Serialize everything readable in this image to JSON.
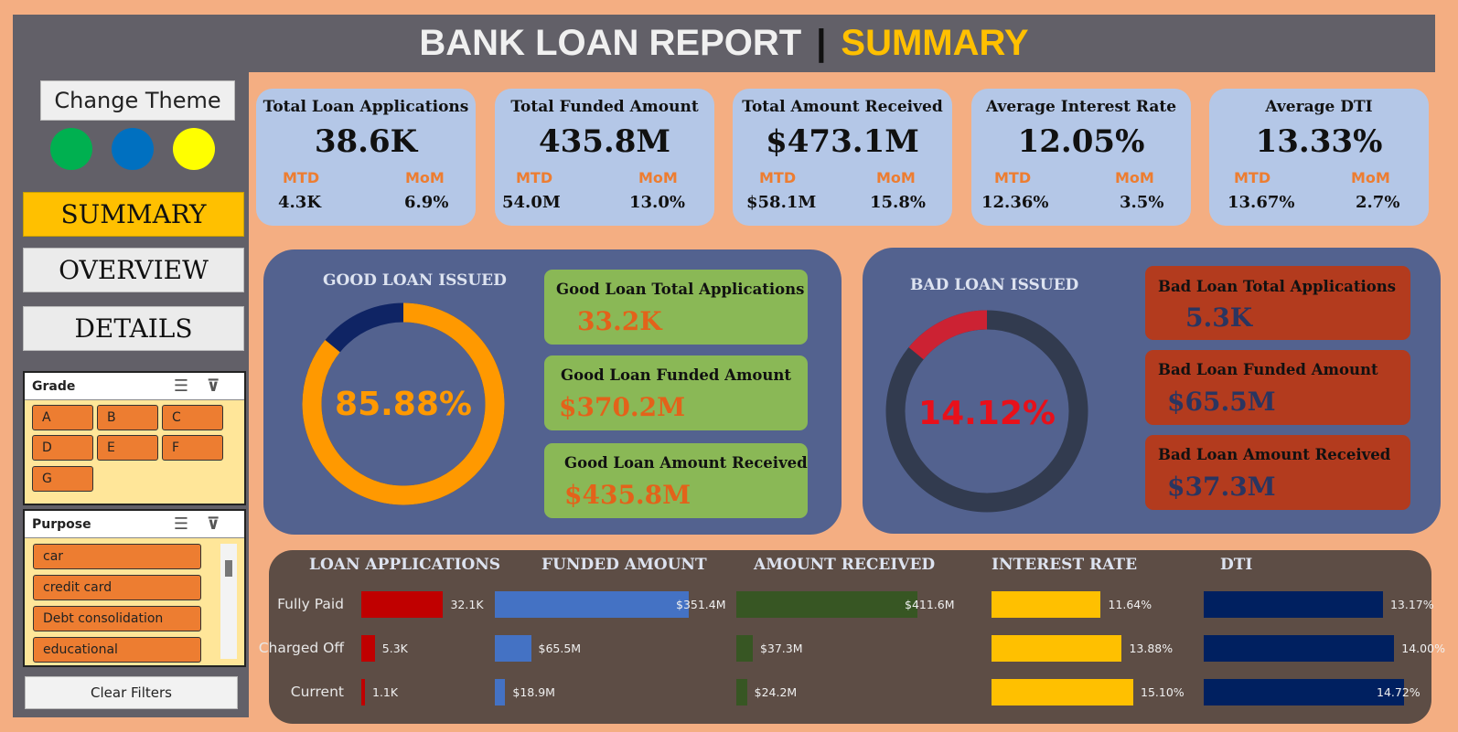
{
  "header": {
    "title": "BANK LOAN REPORT",
    "separator": "|",
    "subtitle": "SUMMARY"
  },
  "sidebar": {
    "change_theme": "Change Theme",
    "theme_colors": [
      "#00b050",
      "#0070c0",
      "#ffff00"
    ],
    "nav": [
      {
        "label": "SUMMARY",
        "active": true
      },
      {
        "label": "OVERVIEW",
        "active": false
      },
      {
        "label": "DETAILS",
        "active": false
      }
    ],
    "grade_slicer": {
      "title": "Grade",
      "items": [
        "A",
        "B",
        "C",
        "D",
        "E",
        "F",
        "G"
      ]
    },
    "purpose_slicer": {
      "title": "Purpose",
      "items": [
        "car",
        "credit card",
        "Debt consolidation",
        "educational"
      ]
    },
    "clear_filters": "Clear Filters"
  },
  "kpis": [
    {
      "title": "Total Loan Applications",
      "value": "38.6K",
      "mtd_label": "MTD",
      "mom_label": "MoM",
      "mtd": "4.3K",
      "mom": "6.9%"
    },
    {
      "title": "Total Funded Amount",
      "value": "435.8M",
      "mtd_label": "MTD",
      "mom_label": "MoM",
      "mtd": "54.0M",
      "mom": "13.0%"
    },
    {
      "title": "Total Amount Received",
      "value": "$473.1M",
      "mtd_label": "MTD",
      "mom_label": "MoM",
      "mtd": "$58.1M",
      "mom": "15.8%"
    },
    {
      "title": "Average Interest Rate",
      "value": "12.05%",
      "mtd_label": "MTD",
      "mom_label": "MoM",
      "mtd": "12.36%",
      "mom": "3.5%"
    },
    {
      "title": "Average DTI",
      "value": "13.33%",
      "mtd_label": "MTD",
      "mom_label": "MoM",
      "mtd": "13.67%",
      "mom": "2.7%"
    }
  ],
  "good_loan": {
    "title": "GOOD LOAN ISSUED",
    "percent_label": "85.88%",
    "percent": 85.88,
    "colors": {
      "fill": "#ff9900",
      "rest": "#0f2464"
    },
    "cards": [
      {
        "title": "Good Loan Total Applications",
        "value": "33.2K"
      },
      {
        "title": "Good Loan Funded Amount",
        "value": "$370.2M"
      },
      {
        "title": "Good Loan Amount Received",
        "value": "$435.8M"
      }
    ]
  },
  "bad_loan": {
    "title": "BAD LOAN ISSUED",
    "percent_label": "14.12%",
    "percent": 14.12,
    "colors": {
      "fill": "#cc2233",
      "rest": "#323b4f"
    },
    "cards": [
      {
        "title": "Bad Loan Total Applications",
        "value": "5.3K"
      },
      {
        "title": "Bad Loan Funded Amount",
        "value": "$65.5M"
      },
      {
        "title": "Bad Loan Amount Received",
        "value": "$37.3M"
      }
    ]
  },
  "status_table": {
    "rows": [
      "Fully Paid",
      "Charged Off",
      "Current"
    ],
    "columns": [
      {
        "header": "LOAN APPLICATIONS",
        "color": "#c00000",
        "labels": [
          "32.1K",
          "5.3K",
          "1.1K"
        ],
        "values": [
          32.1,
          5.3,
          1.1
        ],
        "max": 33
      },
      {
        "header": "FUNDED AMOUNT",
        "color": "#4472c4",
        "labels": [
          "$351.4M",
          "$65.5M",
          "$18.9M"
        ],
        "values": [
          351.4,
          65.5,
          18.9
        ],
        "max": 351.4
      },
      {
        "header": "AMOUNT RECEIVED",
        "color": "#375623",
        "labels": [
          "$411.6M",
          "$37.3M",
          "$24.2M"
        ],
        "values": [
          411.6,
          37.3,
          24.2
        ],
        "max": 411.6
      },
      {
        "header": "INTEREST RATE",
        "color": "#ffc000",
        "labels": [
          "11.64%",
          "13.88%",
          "15.10%"
        ],
        "values": [
          11.64,
          13.88,
          15.1
        ],
        "max": 15.1
      },
      {
        "header": "DTI",
        "color": "#002060",
        "labels": [
          "13.17%",
          "14.00%",
          "14.72%"
        ],
        "values": [
          13.17,
          14.0,
          14.72
        ],
        "max": 14.72
      }
    ]
  }
}
